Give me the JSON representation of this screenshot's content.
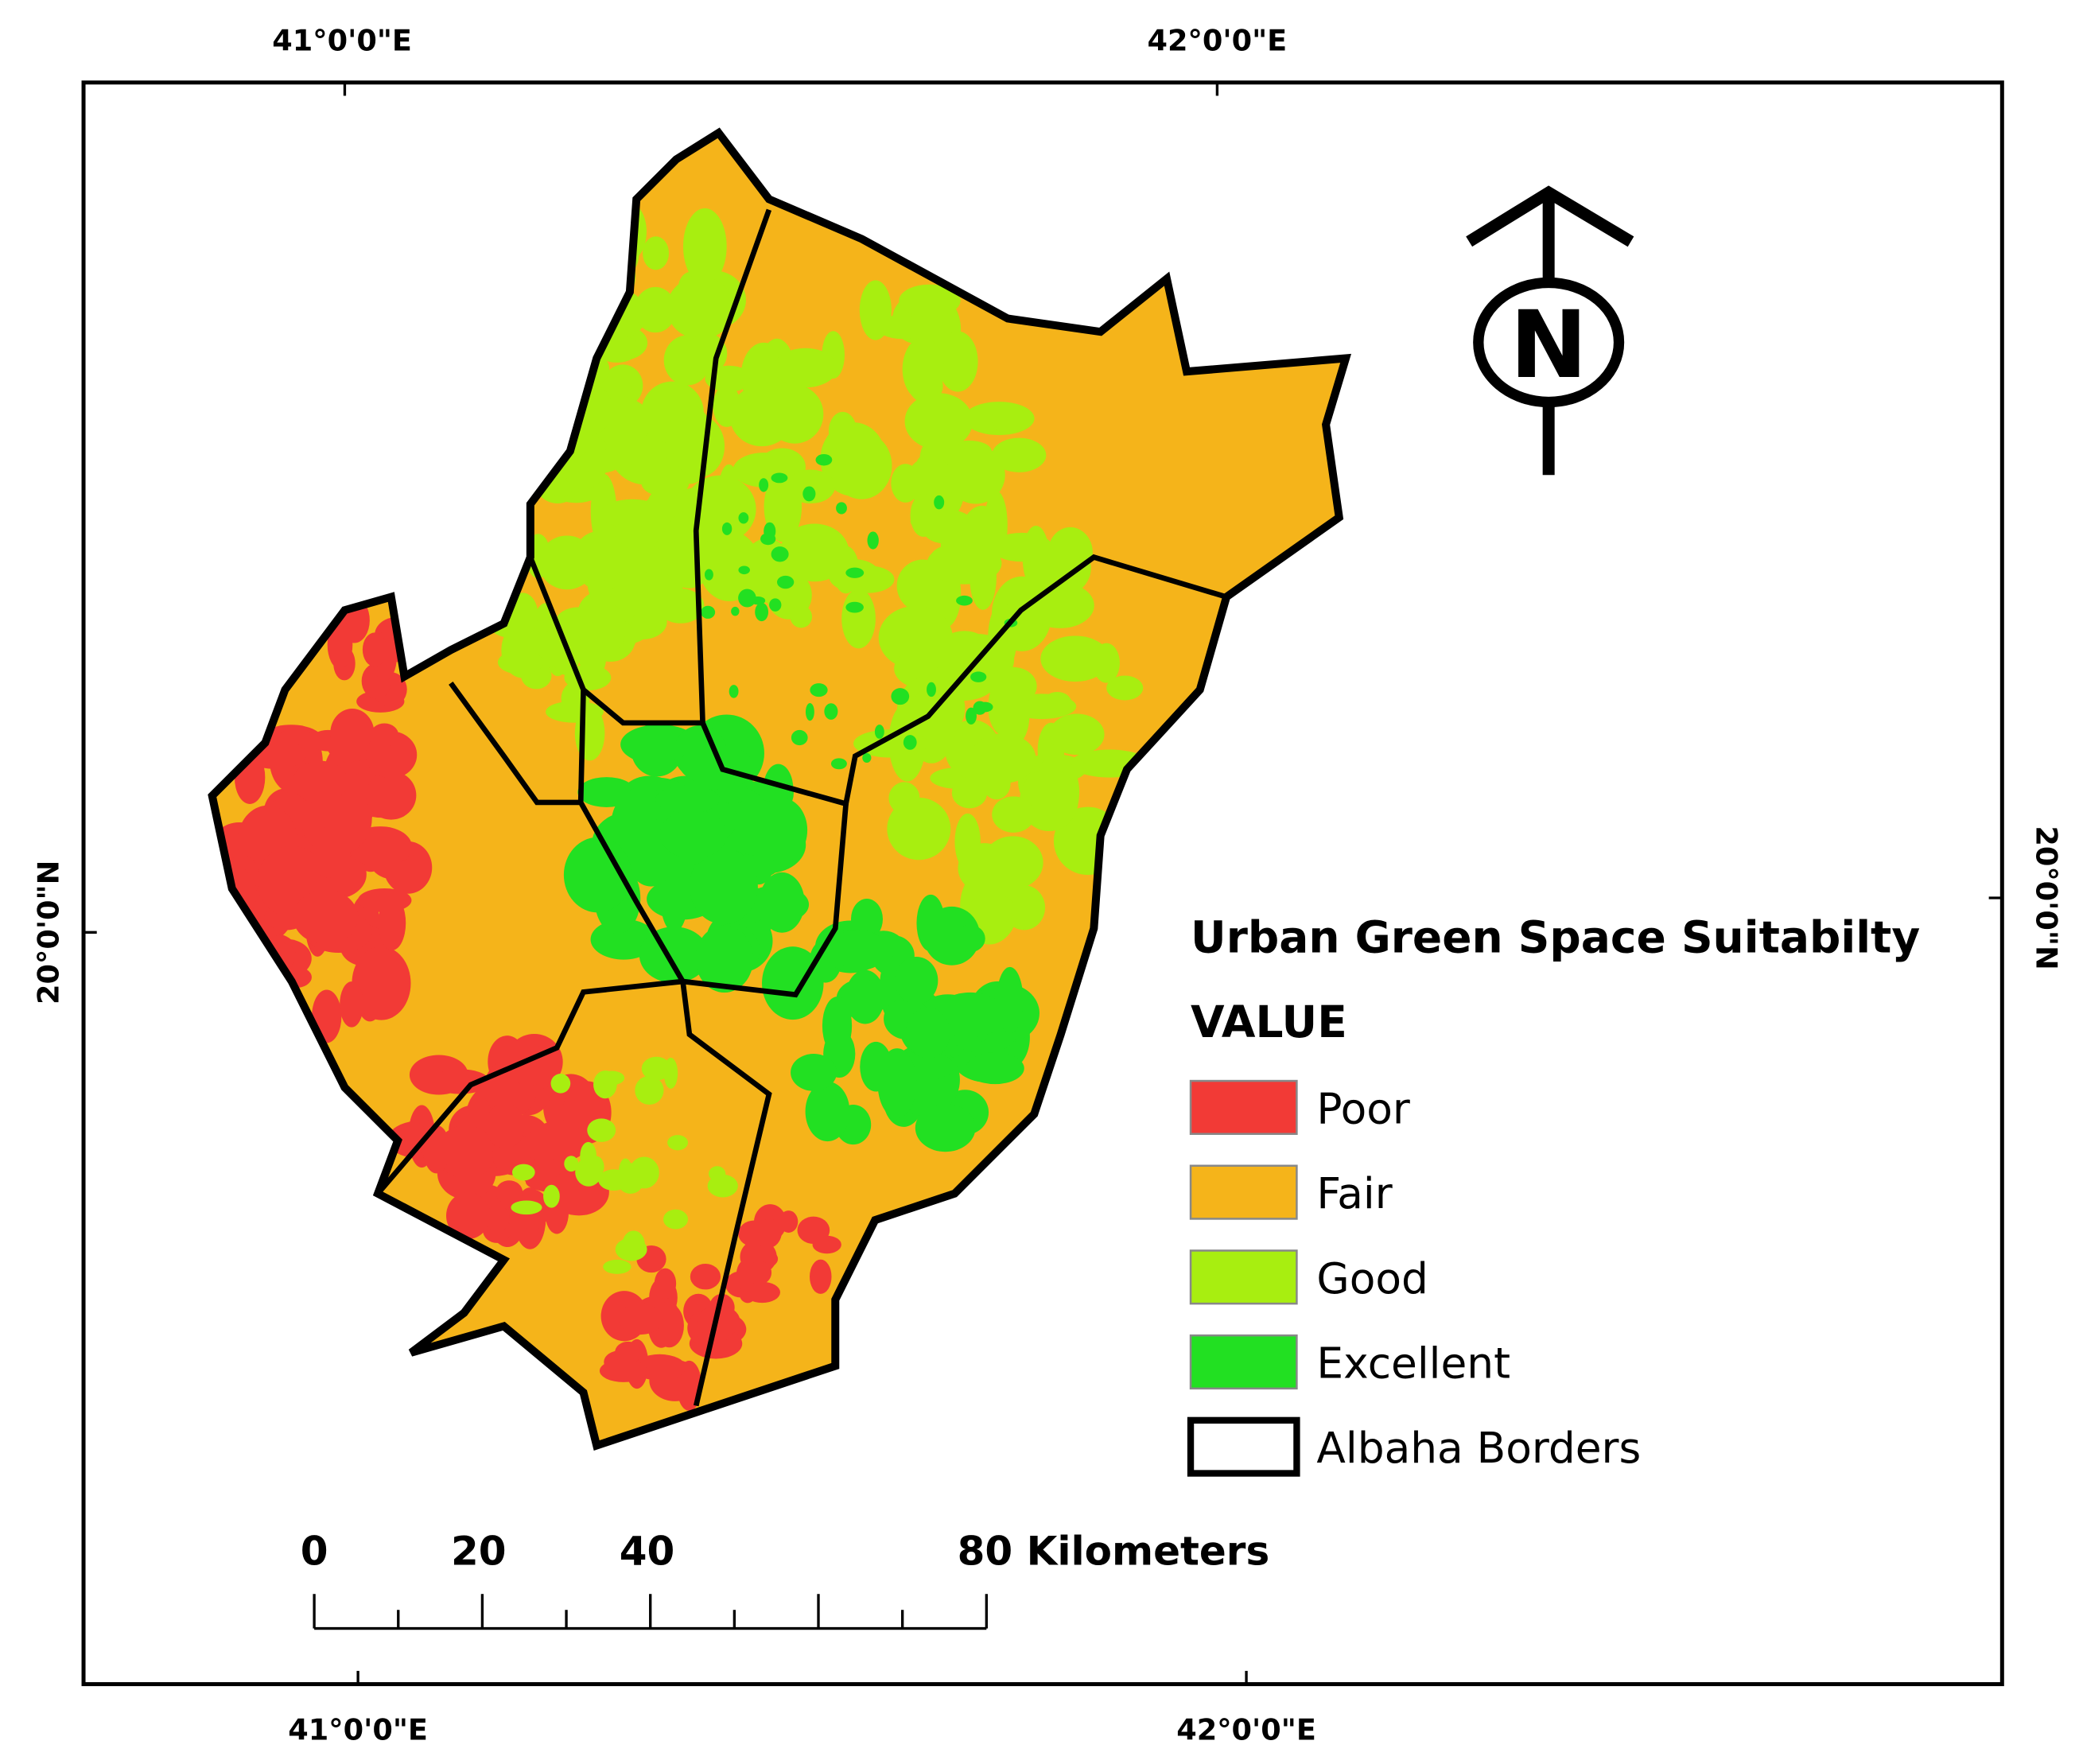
{
  "map": {
    "top_labels": [
      "41°0'0\"E",
      "42°0'0\"E"
    ],
    "bottom_labels": [
      "41°0'0\"E",
      "42°0'0\"E"
    ],
    "left_label": "20°0'0\"N",
    "right_label": "20°0'0\"N",
    "north": "N",
    "legend": {
      "title": "Urban Green Space Suitabilty",
      "subtitle": "VALUE",
      "items": [
        {
          "label": "Poor",
          "color": "#f23a36"
        },
        {
          "label": "Fair",
          "color": "#f5b41a"
        },
        {
          "label": "Good",
          "color": "#a8ee10"
        },
        {
          "label": "Excellent",
          "color": "#22e022"
        }
      ],
      "border_label": "Albaha Borders"
    },
    "scale_bar": {
      "labels": [
        "0",
        "20",
        "40",
        "80 Kilometers"
      ]
    }
  }
}
